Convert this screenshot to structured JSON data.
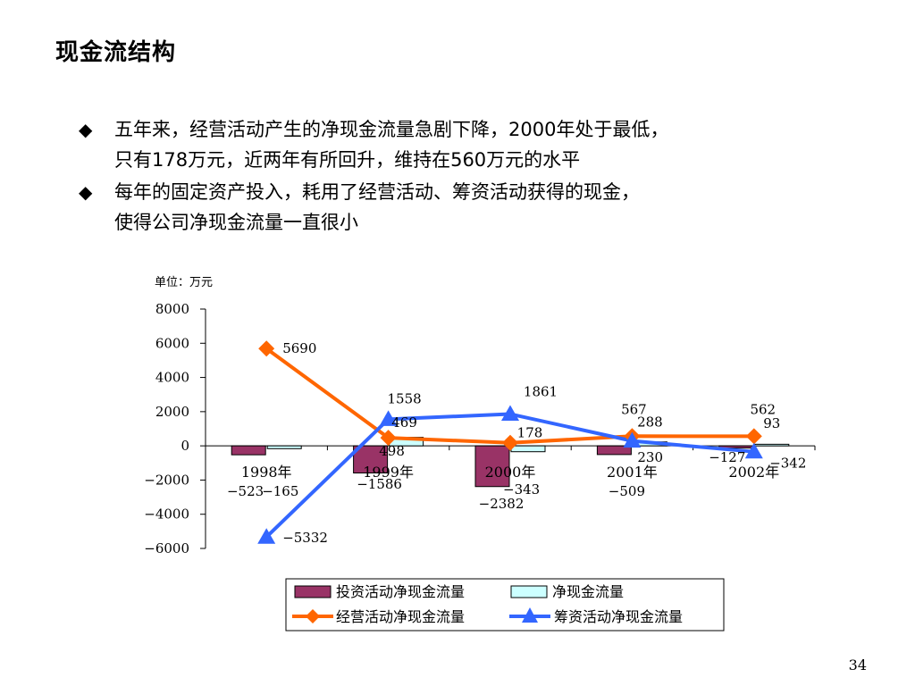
{
  "slide": {
    "title": "现金流结构",
    "page_number": "34"
  },
  "bullets": [
    {
      "marker": "◆",
      "lines": [
        "五年来，经营活动产生的净现金流量急剧下降，2000年处于最低，",
        "只有178万元，近两年有所回升，维持在560万元的水平"
      ]
    },
    {
      "marker": "◆",
      "lines": [
        "每年的固定资产投入，耗用了经营活动、筹资活动获得的现金，",
        "使得公司净现金流量一直很小"
      ]
    }
  ],
  "colors": {
    "investing": "#993366",
    "net": "#CCFFFF",
    "operating": "#FF6600",
    "financing": "#3366FF"
  },
  "chart_data": {
    "type": "bar",
    "unit_label": "单位：万元",
    "categories": [
      "1998年",
      "1999年",
      "2000年",
      "2001年",
      "2002年"
    ],
    "ylim": [
      -6000,
      8000
    ],
    "yticks": [
      8000,
      6000,
      4000,
      2000,
      0,
      -2000,
      -4000,
      -6000
    ],
    "grid": false,
    "legend_position": "bottom",
    "series": [
      {
        "name": "投资活动净现金流量",
        "type": "bar",
        "values": [
          -523,
          -1586,
          -2382,
          -509,
          -127
        ]
      },
      {
        "name": "净现金流量",
        "type": "bar",
        "values": [
          -165,
          498,
          -343,
          230,
          93
        ]
      },
      {
        "name": "经营活动净现金流量",
        "type": "line",
        "marker": "diamond",
        "values": [
          5690,
          469,
          178,
          567,
          562
        ]
      },
      {
        "name": "筹资活动净现金流量",
        "type": "line",
        "marker": "triangle",
        "values": [
          -5332,
          1558,
          1861,
          288,
          -342
        ]
      }
    ]
  }
}
